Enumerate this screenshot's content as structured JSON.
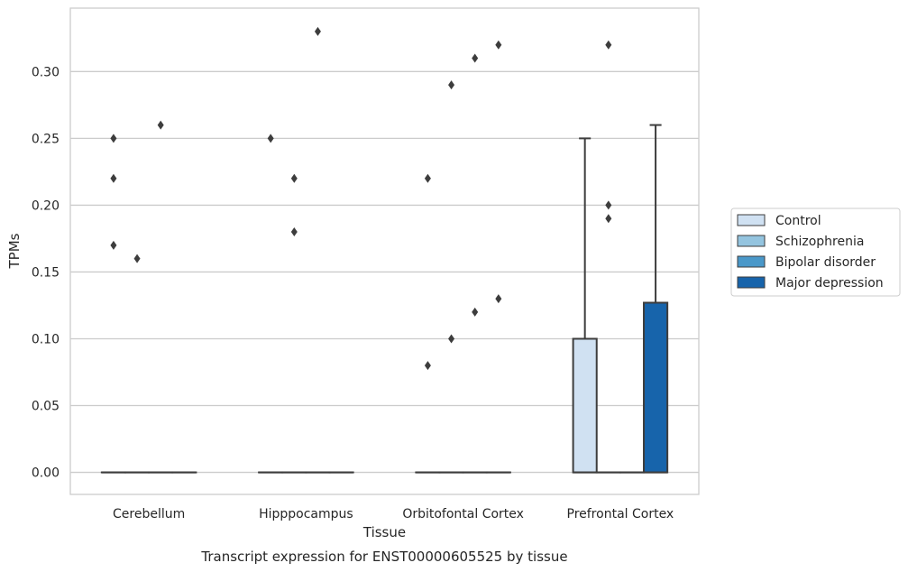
{
  "chart_data": {
    "type": "box",
    "title": "Transcript expression for ENST00000605525 by tissue",
    "xlabel": "Tissue",
    "ylabel": "TPMs",
    "ylim": [
      -0.0165,
      0.3475
    ],
    "yticks": [
      0.0,
      0.05,
      0.1,
      0.15,
      0.2,
      0.25,
      0.3
    ],
    "ytick_labels": [
      "0.00",
      "0.05",
      "0.10",
      "0.15",
      "0.20",
      "0.25",
      "0.30"
    ],
    "grid": true,
    "legend_position": "right",
    "categories": [
      "Cerebellum",
      "Hipppocampus",
      "Orbitofontal Cortex",
      "Prefrontal Cortex"
    ],
    "series": [
      {
        "name": "Control",
        "color": "#d0e1f2",
        "boxes": [
          {
            "category": "Cerebellum",
            "q1": 0,
            "median": 0,
            "q3": 0,
            "whisker_low": 0,
            "whisker_high": 0,
            "outliers": [
              0.25,
              0.22,
              0.17
            ]
          },
          {
            "category": "Hipppocampus",
            "q1": 0,
            "median": 0,
            "q3": 0,
            "whisker_low": 0,
            "whisker_high": 0,
            "outliers": [
              0.25
            ]
          },
          {
            "category": "Orbitofontal Cortex",
            "q1": 0,
            "median": 0,
            "q3": 0,
            "whisker_low": 0,
            "whisker_high": 0,
            "outliers": [
              0.22,
              0.08
            ]
          },
          {
            "category": "Prefrontal Cortex",
            "q1": 0,
            "median": 0,
            "q3": 0.1,
            "whisker_low": 0,
            "whisker_high": 0.25,
            "outliers": []
          }
        ]
      },
      {
        "name": "Schizophrenia",
        "color": "#94c4df",
        "boxes": [
          {
            "category": "Cerebellum",
            "q1": 0,
            "median": 0,
            "q3": 0,
            "whisker_low": 0,
            "whisker_high": 0,
            "outliers": [
              0.16
            ]
          },
          {
            "category": "Hipppocampus",
            "q1": 0,
            "median": 0,
            "q3": 0,
            "whisker_low": 0,
            "whisker_high": 0,
            "outliers": [
              0.22,
              0.18
            ]
          },
          {
            "category": "Orbitofontal Cortex",
            "q1": 0,
            "median": 0,
            "q3": 0,
            "whisker_low": 0,
            "whisker_high": 0,
            "outliers": [
              0.29,
              0.1
            ]
          },
          {
            "category": "Prefrontal Cortex",
            "q1": 0,
            "median": 0,
            "q3": 0,
            "whisker_low": 0,
            "whisker_high": 0,
            "outliers": [
              0.32,
              0.2,
              0.19
            ]
          }
        ]
      },
      {
        "name": "Bipolar disorder",
        "color": "#4a98c9",
        "boxes": [
          {
            "category": "Cerebellum",
            "q1": 0,
            "median": 0,
            "q3": 0,
            "whisker_low": 0,
            "whisker_high": 0,
            "outliers": [
              0.26
            ]
          },
          {
            "category": "Hipppocampus",
            "q1": 0,
            "median": 0,
            "q3": 0,
            "whisker_low": 0,
            "whisker_high": 0,
            "outliers": [
              0.33
            ]
          },
          {
            "category": "Orbitofontal Cortex",
            "q1": 0,
            "median": 0,
            "q3": 0,
            "whisker_low": 0,
            "whisker_high": 0,
            "outliers": [
              0.31,
              0.12
            ]
          },
          {
            "category": "Prefrontal Cortex",
            "q1": 0,
            "median": 0,
            "q3": 0,
            "whisker_low": 0,
            "whisker_high": 0,
            "outliers": []
          }
        ]
      },
      {
        "name": "Major depression",
        "color": "#1764ab",
        "boxes": [
          {
            "category": "Cerebellum",
            "q1": 0,
            "median": 0,
            "q3": 0,
            "whisker_low": 0,
            "whisker_high": 0,
            "outliers": []
          },
          {
            "category": "Hipppocampus",
            "q1": 0,
            "median": 0,
            "q3": 0,
            "whisker_low": 0,
            "whisker_high": 0,
            "outliers": []
          },
          {
            "category": "Orbitofontal Cortex",
            "q1": 0,
            "median": 0,
            "q3": 0,
            "whisker_low": 0,
            "whisker_high": 0,
            "outliers": [
              0.32,
              0.13
            ]
          },
          {
            "category": "Prefrontal Cortex",
            "q1": 0,
            "median": 0,
            "q3": 0.127,
            "whisker_low": 0,
            "whisker_high": 0.26,
            "outliers": []
          }
        ]
      }
    ]
  }
}
